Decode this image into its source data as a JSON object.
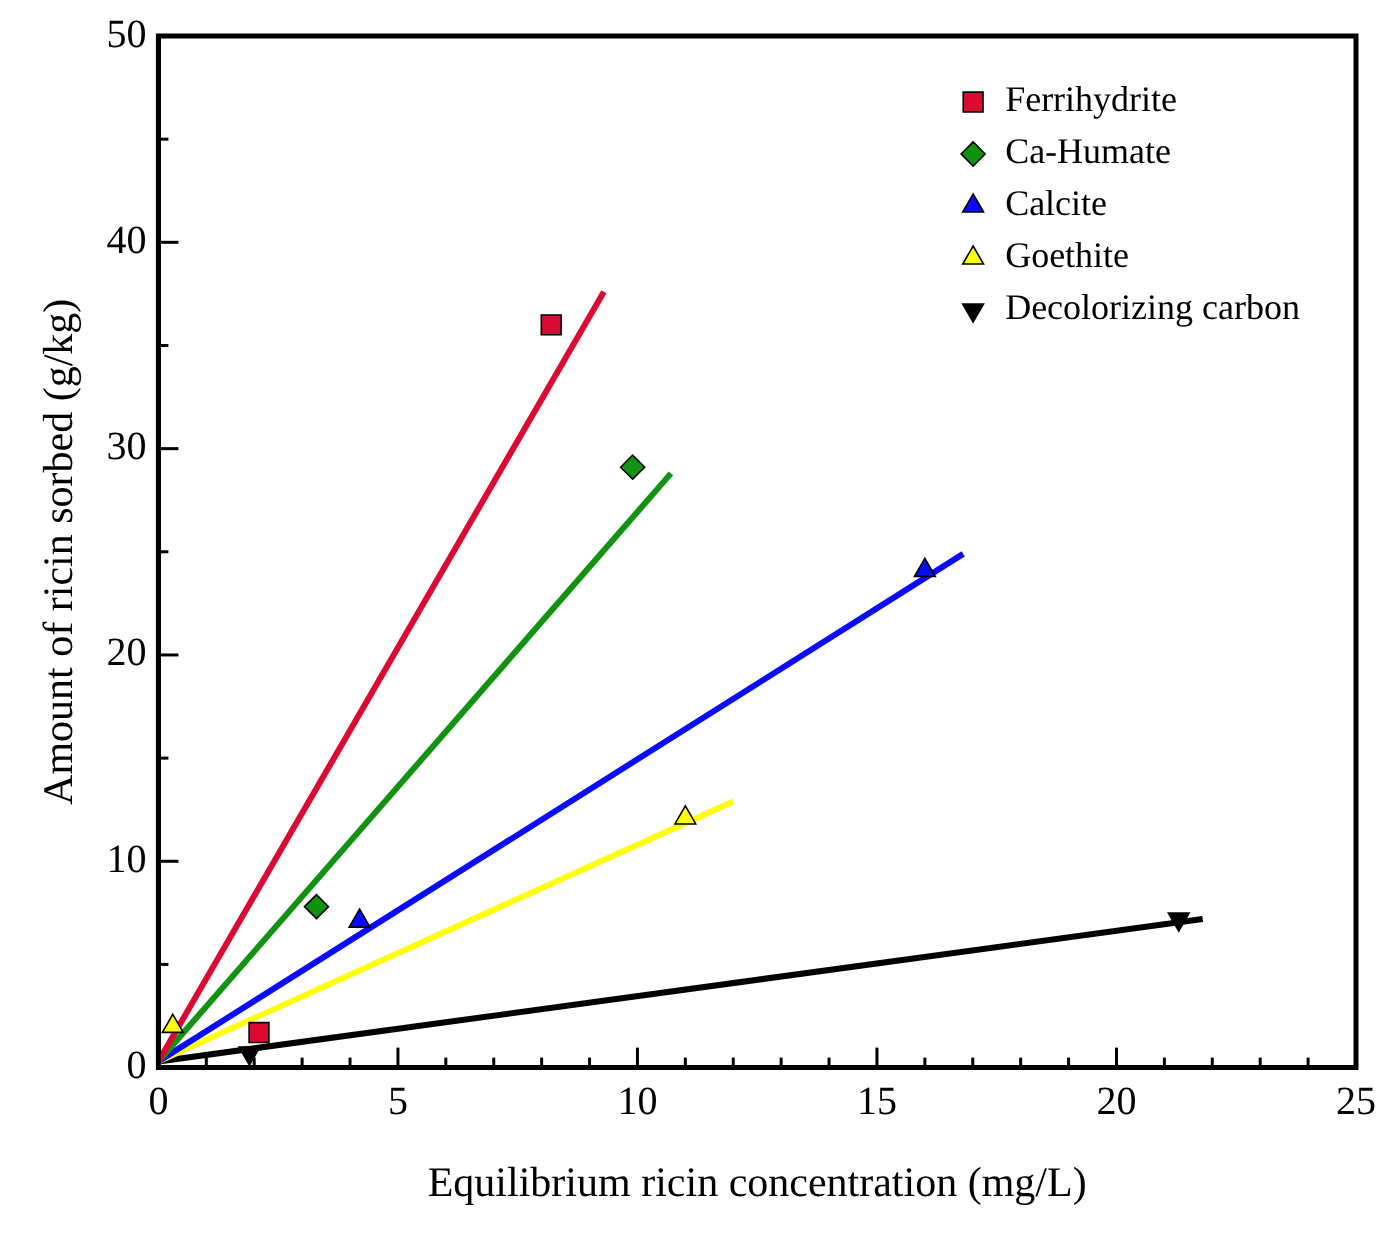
{
  "chart_data": {
    "type": "scatter",
    "xlabel": "Equilibrium ricin concentration (mg/L)",
    "ylabel": "Amount of ricin sorbed (g/kg)",
    "xlim": [
      0,
      25
    ],
    "ylim": [
      0,
      50
    ],
    "xticks": [
      0,
      {
        "value": 1,
        "label": null
      },
      {
        "value": 2,
        "label": null
      },
      {
        "value": 3,
        "label": null
      },
      {
        "value": 4,
        "label": null
      },
      5,
      {
        "value": 6,
        "label": null
      },
      {
        "value": 7,
        "label": null
      },
      {
        "value": 8,
        "label": null
      },
      {
        "value": 9,
        "label": null
      },
      10,
      {
        "value": 11,
        "label": null
      },
      {
        "value": 12,
        "label": null
      },
      {
        "value": 13,
        "label": null
      },
      {
        "value": 14,
        "label": null
      },
      15,
      {
        "value": 16,
        "label": null
      },
      {
        "value": 17,
        "label": null
      },
      {
        "value": 18,
        "label": null
      },
      {
        "value": 19,
        "label": null
      },
      20,
      {
        "value": 21,
        "label": null
      },
      {
        "value": 22,
        "label": null
      },
      {
        "value": 23,
        "label": null
      },
      {
        "value": 24,
        "label": null
      },
      25
    ],
    "yticks": [
      0,
      {
        "value": 5,
        "label": null
      },
      10,
      {
        "value": 15,
        "label": null
      },
      20,
      {
        "value": 25,
        "label": null
      },
      30,
      {
        "value": 35,
        "label": null
      },
      40,
      {
        "value": 45,
        "label": null
      },
      50
    ],
    "grid": false,
    "legend": "top right",
    "series": [
      {
        "name": "Ferrihydrite",
        "color": "#dc0a32",
        "marker": "square",
        "x": [
          2.1,
          8.2
        ],
        "values": [
          1.7,
          36.0
        ]
      },
      {
        "name": "Ca-Humate",
        "color": "#119211",
        "marker": "diamond",
        "x": [
          3.3,
          9.9
        ],
        "values": [
          7.8,
          29.1
        ]
      },
      {
        "name": "Calcite",
        "color": "#0a0aff",
        "marker": "triangle",
        "x": [
          4.2,
          16.0
        ],
        "values": [
          7.1,
          24.1
        ]
      },
      {
        "name": "Goethite",
        "color": "#ffff0a",
        "marker": "triangle",
        "x": [
          0.3,
          11.0
        ],
        "values": [
          2.0,
          12.1
        ]
      },
      {
        "name": "Decolorizing carbon",
        "color": "#000000",
        "marker": "triangle-down",
        "x": [
          1.9,
          21.3
        ],
        "values": [
          0.7,
          7.2
        ]
      },
      {
        "type": "line",
        "color": "#dc0a32",
        "marker": "none",
        "x": [
          0,
          9.3
        ],
        "values": [
          0.3,
          37.6
        ]
      },
      {
        "type": "line",
        "color": "#119211",
        "marker": "none",
        "x": [
          0,
          10.7
        ],
        "values": [
          0.3,
          28.8
        ]
      },
      {
        "type": "line",
        "color": "#0a0aff",
        "marker": "none",
        "x": [
          0,
          16.8
        ],
        "values": [
          0.3,
          24.9
        ]
      },
      {
        "type": "line",
        "color": "#ffff0a",
        "marker": "none",
        "x": [
          0,
          12.0
        ],
        "values": [
          0.3,
          12.9
        ]
      },
      {
        "type": "line",
        "color": "#000000",
        "marker": "none",
        "x": [
          0,
          21.8
        ],
        "values": [
          0.3,
          7.2
        ]
      }
    ]
  }
}
